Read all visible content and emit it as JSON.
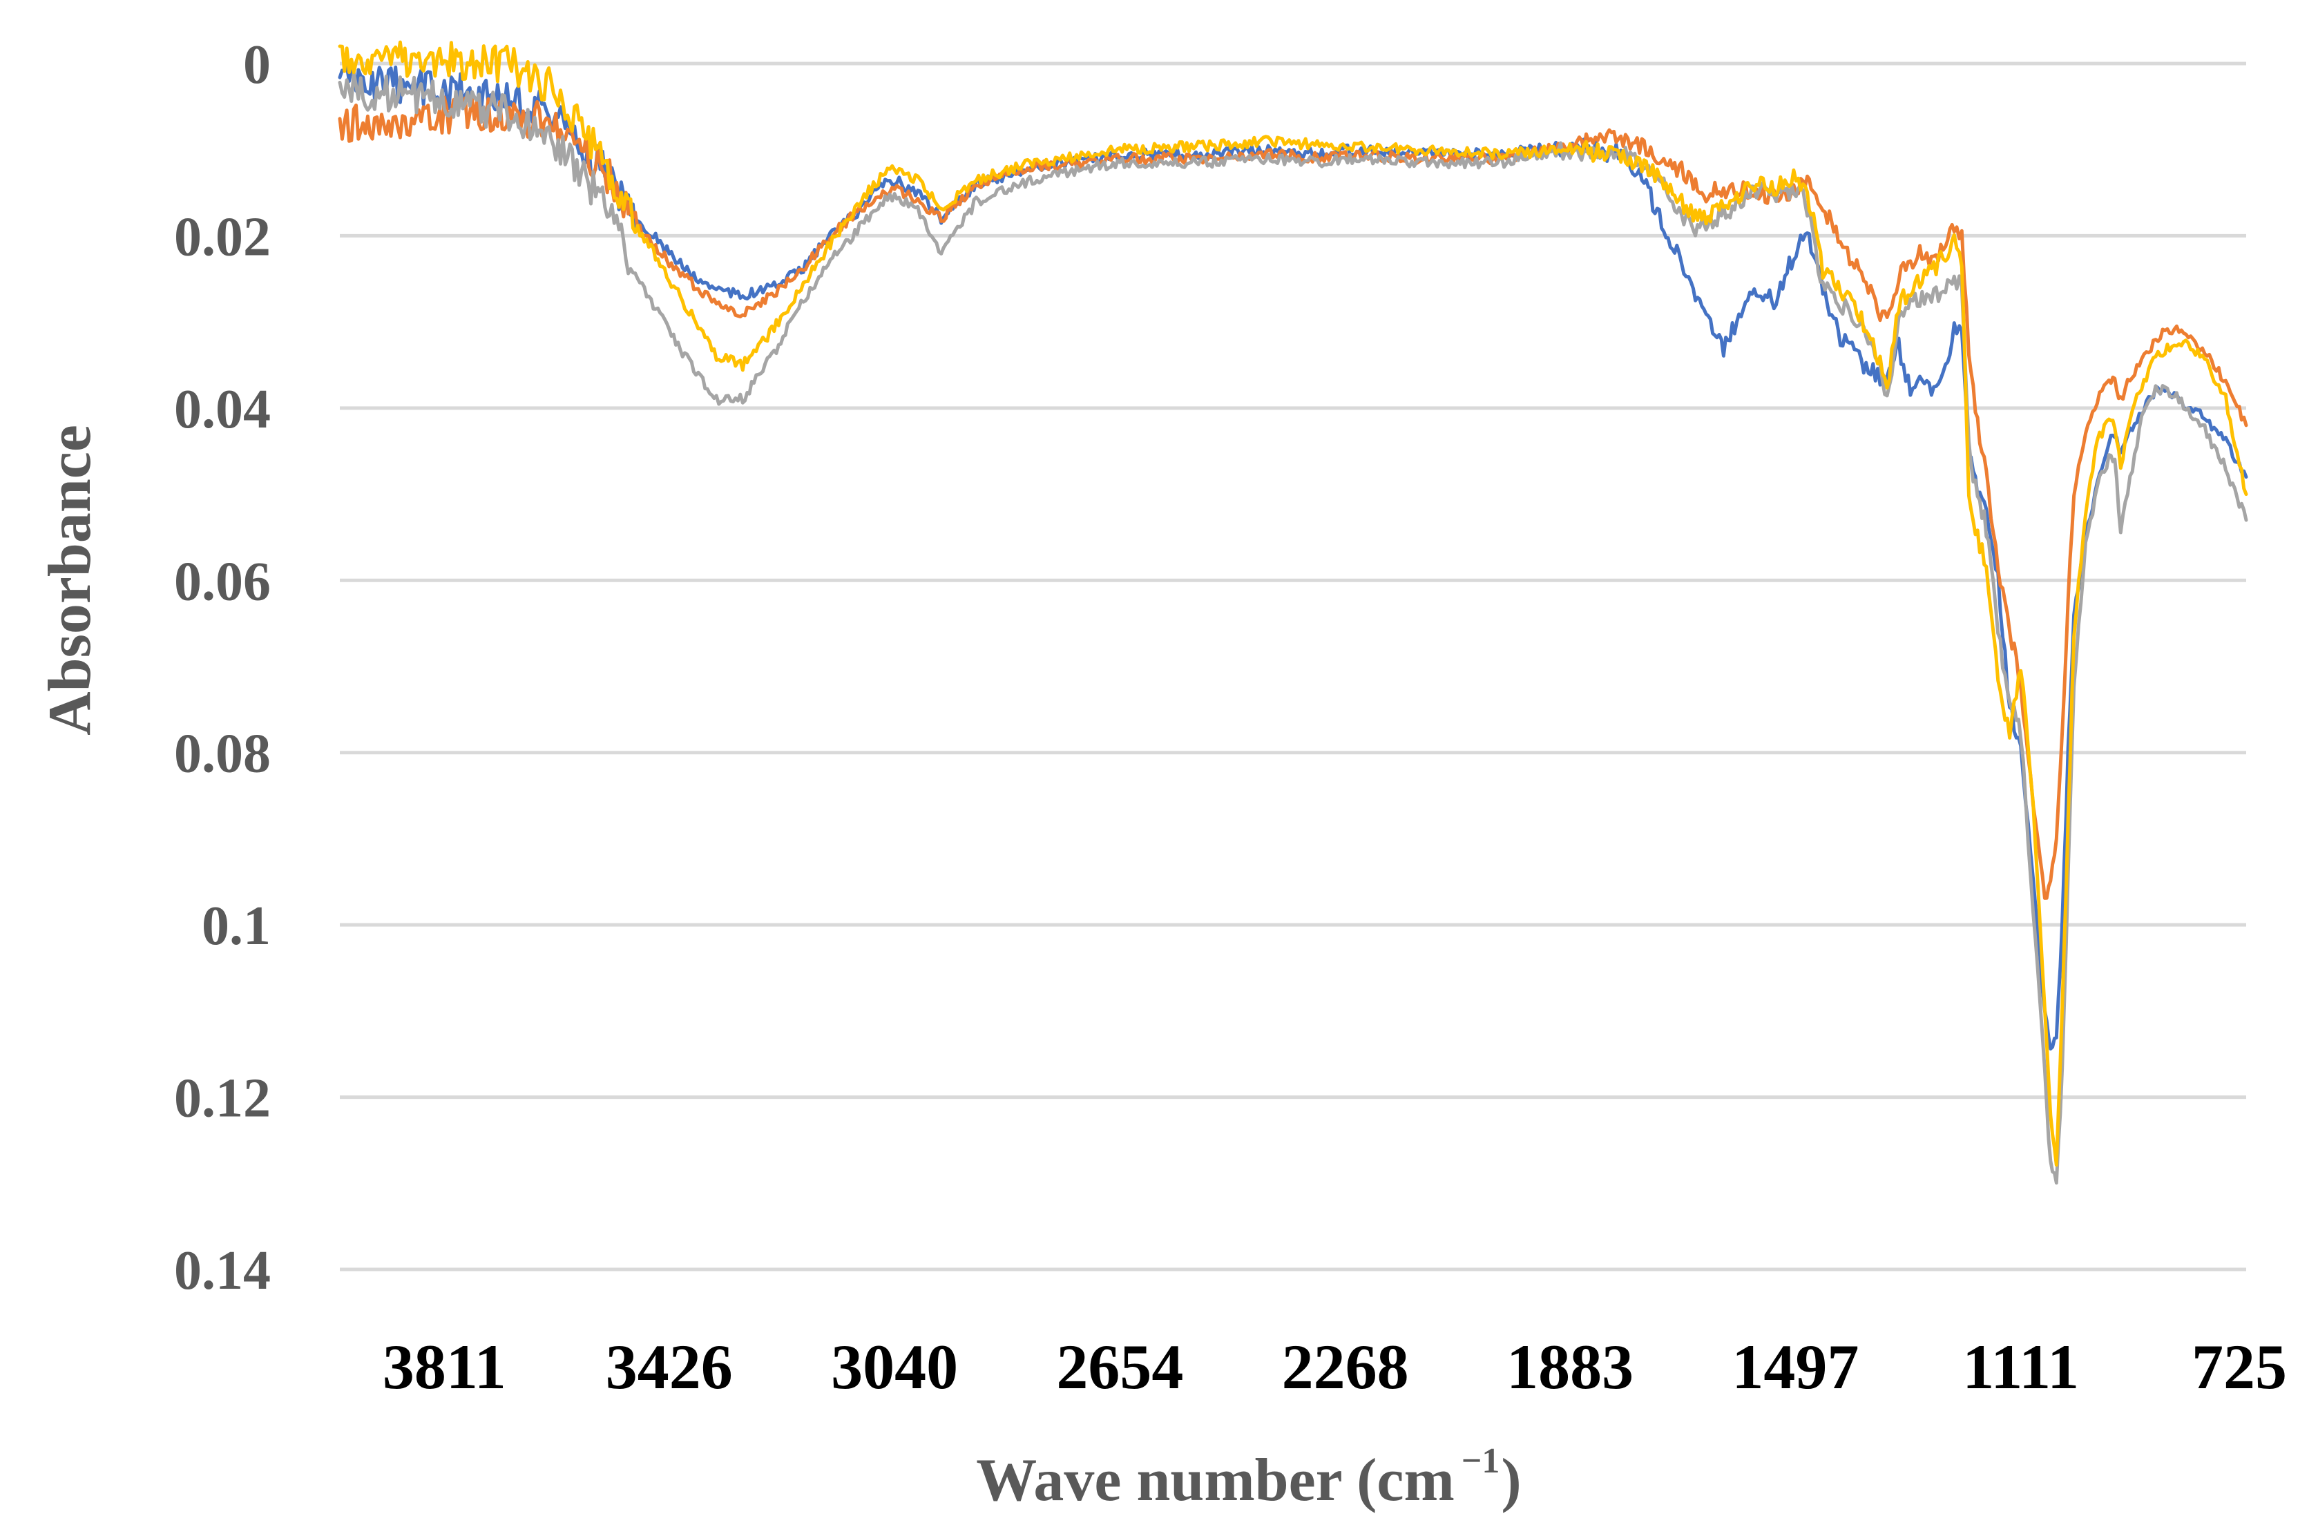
{
  "chart_data": {
    "type": "line",
    "xlabel": "Wave number (cm",
    "xlabel_sup": "−1",
    "xlabel_close": ")",
    "ylabel": "Absorbance",
    "x_reversed": true,
    "y_reversed": true,
    "xlim": [
      3990,
      725
    ],
    "ylim": [
      0,
      0.14
    ],
    "grid": true,
    "yticks": [
      "0",
      "0.02",
      "0.04",
      "0.06",
      "0.08",
      "0.1",
      "0.12",
      "0.14"
    ],
    "ytick_values": [
      0,
      0.02,
      0.04,
      0.06,
      0.08,
      0.1,
      0.12,
      0.14
    ],
    "xticks": [
      "3811",
      "3426",
      "3040",
      "2654",
      "2268",
      "1883",
      "1497",
      "1111",
      "725"
    ],
    "xtick_values": [
      3811,
      3426,
      3040,
      2654,
      2268,
      1883,
      1497,
      1111,
      725
    ],
    "series": [
      {
        "color": "#4472c4",
        "x": [
          3990,
          3811,
          3700,
          3620,
          3540,
          3480,
          3426,
          3380,
          3345,
          3300,
          3250,
          3200,
          3150,
          3100,
          3060,
          3040,
          3000,
          2960,
          2900,
          2800,
          2700,
          2654,
          2500,
          2400,
          2300,
          2268,
          2150,
          2000,
          1883,
          1800,
          1760,
          1730,
          1700,
          1672,
          1650,
          1620,
          1590,
          1560,
          1530,
          1500,
          1480,
          1470,
          1450,
          1420,
          1400,
          1380,
          1360,
          1340,
          1320,
          1300,
          1280,
          1260,
          1240,
          1225,
          1212,
          1200,
          1185,
          1170,
          1150,
          1130,
          1111,
          1090,
          1070,
          1060,
          1050,
          1040,
          1030,
          1020,
          1000,
          980,
          960,
          950,
          940,
          920,
          900,
          880,
          860,
          840,
          800,
          760,
          725
        ],
        "y": [
          0.002,
          0.003,
          0.004,
          0.006,
          0.012,
          0.018,
          0.022,
          0.025,
          0.026,
          0.027,
          0.026,
          0.024,
          0.02,
          0.017,
          0.014,
          0.0135,
          0.015,
          0.018,
          0.014,
          0.012,
          0.011,
          0.0105,
          0.0105,
          0.01,
          0.0105,
          0.01,
          0.0105,
          0.0105,
          0.0095,
          0.0105,
          0.013,
          0.018,
          0.022,
          0.026,
          0.03,
          0.033,
          0.029,
          0.026,
          0.028,
          0.022,
          0.019,
          0.021,
          0.026,
          0.032,
          0.033,
          0.035,
          0.036,
          0.037,
          0.033,
          0.038,
          0.037,
          0.038,
          0.035,
          0.031,
          0.03,
          0.045,
          0.05,
          0.052,
          0.06,
          0.075,
          0.079,
          0.095,
          0.11,
          0.114,
          0.113,
          0.1,
          0.08,
          0.064,
          0.055,
          0.049,
          0.044,
          0.043,
          0.045,
          0.042,
          0.04,
          0.038,
          0.038,
          0.039,
          0.041,
          0.044,
          0.048
        ]
      },
      {
        "color": "#ed7d31",
        "x": [
          3990,
          3811,
          3700,
          3620,
          3540,
          3480,
          3426,
          3380,
          3345,
          3300,
          3250,
          3200,
          3150,
          3100,
          3060,
          3040,
          3000,
          2960,
          2900,
          2800,
          2700,
          2654,
          2500,
          2400,
          2300,
          2268,
          2150,
          2000,
          1883,
          1800,
          1760,
          1730,
          1700,
          1672,
          1650,
          1620,
          1590,
          1560,
          1530,
          1500,
          1480,
          1470,
          1450,
          1420,
          1400,
          1380,
          1360,
          1340,
          1320,
          1300,
          1280,
          1260,
          1240,
          1225,
          1212,
          1200,
          1185,
          1170,
          1150,
          1130,
          1111,
          1090,
          1070,
          1060,
          1050,
          1040,
          1030,
          1020,
          1000,
          980,
          960,
          950,
          940,
          920,
          900,
          880,
          860,
          840,
          800,
          760,
          725
        ],
        "y": [
          0.007,
          0.006,
          0.006,
          0.007,
          0.012,
          0.019,
          0.023,
          0.026,
          0.028,
          0.029,
          0.027,
          0.024,
          0.02,
          0.017,
          0.015,
          0.0145,
          0.016,
          0.018,
          0.014,
          0.012,
          0.0115,
          0.011,
          0.011,
          0.0105,
          0.011,
          0.0105,
          0.011,
          0.011,
          0.0095,
          0.0085,
          0.0095,
          0.011,
          0.012,
          0.0135,
          0.015,
          0.0145,
          0.0145,
          0.015,
          0.0155,
          0.0145,
          0.0135,
          0.0145,
          0.017,
          0.02,
          0.023,
          0.025,
          0.028,
          0.03,
          0.025,
          0.023,
          0.022,
          0.023,
          0.021,
          0.019,
          0.02,
          0.034,
          0.042,
          0.048,
          0.058,
          0.066,
          0.072,
          0.086,
          0.097,
          0.095,
          0.09,
          0.078,
          0.062,
          0.05,
          0.043,
          0.039,
          0.037,
          0.037,
          0.039,
          0.036,
          0.034,
          0.032,
          0.031,
          0.031,
          0.033,
          0.037,
          0.042
        ]
      },
      {
        "color": "#a5a5a5",
        "x": [
          3990,
          3811,
          3700,
          3620,
          3540,
          3480,
          3426,
          3380,
          3345,
          3300,
          3250,
          3200,
          3150,
          3100,
          3060,
          3040,
          3000,
          2960,
          2900,
          2800,
          2700,
          2654,
          2500,
          2400,
          2300,
          2268,
          2150,
          2000,
          1883,
          1800,
          1760,
          1730,
          1700,
          1672,
          1650,
          1620,
          1590,
          1560,
          1530,
          1500,
          1480,
          1470,
          1450,
          1420,
          1400,
          1380,
          1360,
          1340,
          1320,
          1300,
          1280,
          1260,
          1240,
          1225,
          1212,
          1200,
          1185,
          1170,
          1150,
          1130,
          1111,
          1090,
          1070,
          1060,
          1050,
          1040,
          1030,
          1020,
          1000,
          980,
          960,
          950,
          940,
          920,
          900,
          880,
          860,
          840,
          800,
          760,
          725
        ],
        "y": [
          0.003,
          0.004,
          0.006,
          0.009,
          0.016,
          0.025,
          0.031,
          0.036,
          0.039,
          0.039,
          0.034,
          0.028,
          0.023,
          0.019,
          0.016,
          0.0155,
          0.017,
          0.022,
          0.016,
          0.0135,
          0.012,
          0.0115,
          0.0115,
          0.011,
          0.0115,
          0.011,
          0.0115,
          0.0115,
          0.01,
          0.0105,
          0.0115,
          0.0135,
          0.0165,
          0.0195,
          0.0185,
          0.0175,
          0.016,
          0.0145,
          0.0155,
          0.0145,
          0.016,
          0.019,
          0.026,
          0.028,
          0.029,
          0.031,
          0.034,
          0.039,
          0.03,
          0.028,
          0.027,
          0.027,
          0.026,
          0.025,
          0.026,
          0.045,
          0.05,
          0.054,
          0.066,
          0.074,
          0.078,
          0.098,
          0.117,
          0.128,
          0.13,
          0.117,
          0.094,
          0.072,
          0.056,
          0.049,
          0.046,
          0.046,
          0.054,
          0.047,
          0.04,
          0.038,
          0.038,
          0.039,
          0.042,
          0.047,
          0.053
        ]
      },
      {
        "color": "#ffc000",
        "x": [
          3990,
          3811,
          3700,
          3620,
          3540,
          3480,
          3426,
          3380,
          3345,
          3300,
          3250,
          3200,
          3150,
          3100,
          3060,
          3040,
          3000,
          2960,
          2900,
          2800,
          2700,
          2654,
          2500,
          2400,
          2300,
          2268,
          2150,
          2000,
          1883,
          1800,
          1760,
          1730,
          1700,
          1672,
          1650,
          1620,
          1590,
          1560,
          1530,
          1500,
          1480,
          1470,
          1450,
          1420,
          1400,
          1380,
          1360,
          1340,
          1320,
          1300,
          1280,
          1260,
          1240,
          1225,
          1212,
          1200,
          1185,
          1170,
          1150,
          1130,
          1111,
          1090,
          1070,
          1060,
          1050,
          1040,
          1030,
          1020,
          1000,
          980,
          960,
          950,
          940,
          920,
          900,
          880,
          860,
          840,
          800,
          760,
          725
        ],
        "y": [
          -0.001,
          -0.0005,
          0.0,
          0.003,
          0.011,
          0.019,
          0.025,
          0.03,
          0.034,
          0.035,
          0.031,
          0.026,
          0.021,
          0.016,
          0.013,
          0.012,
          0.0135,
          0.017,
          0.0135,
          0.0115,
          0.0105,
          0.01,
          0.0095,
          0.009,
          0.0095,
          0.0095,
          0.01,
          0.0105,
          0.01,
          0.0105,
          0.0115,
          0.0135,
          0.0155,
          0.0175,
          0.018,
          0.0165,
          0.015,
          0.014,
          0.0145,
          0.013,
          0.014,
          0.017,
          0.024,
          0.026,
          0.028,
          0.03,
          0.033,
          0.038,
          0.028,
          0.026,
          0.025,
          0.024,
          0.022,
          0.021,
          0.023,
          0.05,
          0.055,
          0.058,
          0.072,
          0.078,
          0.07,
          0.086,
          0.11,
          0.122,
          0.128,
          0.11,
          0.088,
          0.066,
          0.052,
          0.044,
          0.041,
          0.042,
          0.047,
          0.04,
          0.037,
          0.034,
          0.033,
          0.032,
          0.034,
          0.039,
          0.05
        ]
      }
    ]
  }
}
